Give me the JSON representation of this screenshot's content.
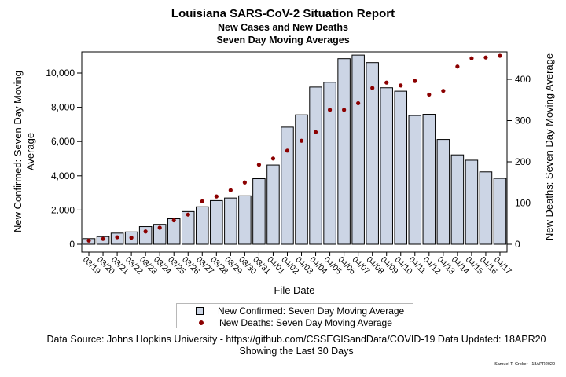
{
  "title": "Louisiana SARS-CoV-2 Situation Report",
  "subtitle1": "New Cases and New Deaths",
  "subtitle2": "Seven Day Moving Averages",
  "footnote_source": "Data Source: Johns Hopkins University - https://github.com/CSSEGISandData/COVID-19 Data Updated: 18APR20",
  "footnote_range": "Showing the Last 30 Days",
  "signature": "Samuel T. Croker - 18APR2020",
  "colors": {
    "bar_fill": "#ccd5e5",
    "bar_stroke": "#000000",
    "dot": "#8b0000"
  },
  "chart_data": {
    "type": "bar",
    "xlabel": "File Date",
    "ylabel": "New Confirmed: Seven Day Moving Average",
    "y2label": "New Deaths: Seven Day Moving Average",
    "ylim": [
      0,
      11000
    ],
    "y_ticks": [
      0,
      2000,
      4000,
      6000,
      8000,
      10000
    ],
    "y_tick_labels": [
      "0",
      "2,000",
      "4,000",
      "6,000",
      "8,000",
      "10,000"
    ],
    "y2lim": [
      0,
      450
    ],
    "y2_ticks": [
      0,
      100,
      200,
      300,
      400
    ],
    "legend_position": "bottom",
    "grid": false,
    "categories": [
      "03/19",
      "03/20",
      "03/21",
      "03/22",
      "03/23",
      "03/24",
      "03/25",
      "03/26",
      "03/27",
      "03/28",
      "03/29",
      "03/30",
      "03/31",
      "04/01",
      "04/02",
      "04/03",
      "04/04",
      "04/05",
      "04/06",
      "04/07",
      "04/08",
      "04/09",
      "04/10",
      "04/11",
      "04/12",
      "04/13",
      "04/14",
      "04/15",
      "04/16",
      "04/17"
    ],
    "series": [
      {
        "name": "New Confirmed: Seven Day Moving Average",
        "kind": "bar",
        "axis": "left",
        "values": [
          330,
          450,
          650,
          720,
          1030,
          1160,
          1490,
          1910,
          2190,
          2550,
          2700,
          2830,
          3830,
          4630,
          6840,
          7560,
          9180,
          9460,
          10840,
          11050,
          10610,
          9140,
          8940,
          7520,
          7590,
          6120,
          5220,
          4910,
          4230,
          3850
        ]
      },
      {
        "name": "New Deaths: Seven Day Moving Average",
        "kind": "scatter",
        "axis": "right",
        "values": [
          9,
          13,
          17,
          16,
          31,
          40,
          58,
          72,
          104,
          116,
          131,
          150,
          193,
          208,
          227,
          251,
          272,
          326,
          326,
          342,
          379,
          392,
          385,
          396,
          363,
          372,
          431,
          451,
          453,
          457
        ]
      }
    ]
  }
}
